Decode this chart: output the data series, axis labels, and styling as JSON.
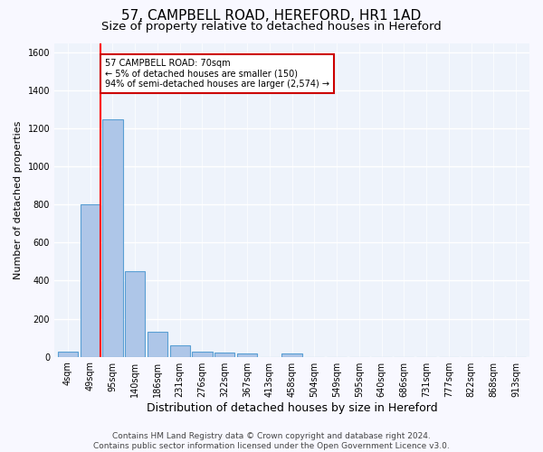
{
  "title": "57, CAMPBELL ROAD, HEREFORD, HR1 1AD",
  "subtitle": "Size of property relative to detached houses in Hereford",
  "xlabel": "Distribution of detached houses by size in Hereford",
  "ylabel": "Number of detached properties",
  "footer_line1": "Contains HM Land Registry data © Crown copyright and database right 2024.",
  "footer_line2": "Contains public sector information licensed under the Open Government Licence v3.0.",
  "bar_labels": [
    "4sqm",
    "49sqm",
    "95sqm",
    "140sqm",
    "186sqm",
    "231sqm",
    "276sqm",
    "322sqm",
    "367sqm",
    "413sqm",
    "458sqm",
    "504sqm",
    "549sqm",
    "595sqm",
    "640sqm",
    "686sqm",
    "731sqm",
    "777sqm",
    "822sqm",
    "868sqm",
    "913sqm"
  ],
  "bar_values": [
    25,
    800,
    1250,
    450,
    130,
    60,
    25,
    20,
    15,
    0,
    15,
    0,
    0,
    0,
    0,
    0,
    0,
    0,
    0,
    0,
    0
  ],
  "bar_color": "#aec6e8",
  "bar_edge_color": "#5a9fd4",
  "red_line_x": 1.45,
  "annotation_text": "57 CAMPBELL ROAD: 70sqm\n← 5% of detached houses are smaller (150)\n94% of semi-detached houses are larger (2,574) →",
  "annotation_box_color": "#ffffff",
  "annotation_box_edge_color": "#cc0000",
  "ylim": [
    0,
    1650
  ],
  "background_color": "#eef3fb",
  "grid_color": "#ffffff",
  "title_fontsize": 11,
  "subtitle_fontsize": 9.5,
  "ylabel_fontsize": 8,
  "xlabel_fontsize": 9,
  "tick_fontsize": 7,
  "footer_fontsize": 6.5,
  "annotation_fontsize": 7
}
